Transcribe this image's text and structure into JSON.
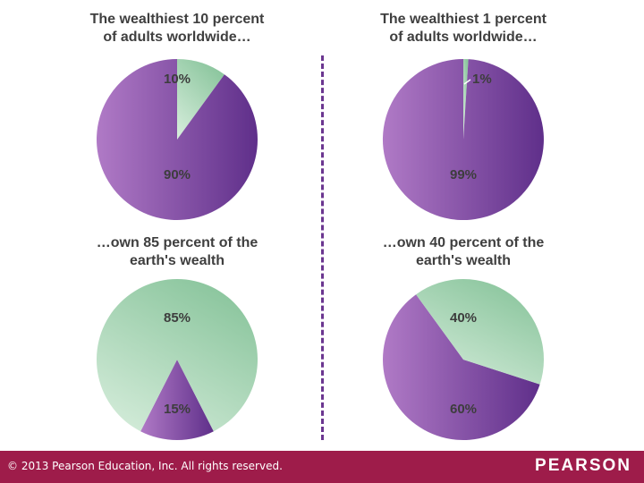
{
  "colors": {
    "purple_light": "#b07ac6",
    "purple_dark": "#5f2f8a",
    "green_light": "#d8eedd",
    "green_dark": "#8ec7a0",
    "divider": "#6b3690",
    "footer": "#9e1c4a"
  },
  "chart_data": [
    {
      "type": "pie",
      "title": "The wealthiest 10 percent\nof adults worldwide…",
      "slices": [
        {
          "label": "10%",
          "value": 10,
          "color": "green"
        },
        {
          "label": "90%",
          "value": 90,
          "color": "purple"
        }
      ]
    },
    {
      "type": "pie",
      "title": "The wealthiest 1 percent\nof adults worldwide…",
      "slices": [
        {
          "label": "1%",
          "value": 1,
          "color": "green"
        },
        {
          "label": "99%",
          "value": 99,
          "color": "purple"
        }
      ]
    },
    {
      "type": "pie",
      "title": "…own 85 percent of the\nearth's wealth",
      "slices": [
        {
          "label": "15%",
          "value": 15,
          "color": "purple"
        },
        {
          "label": "85%",
          "value": 85,
          "color": "green"
        }
      ]
    },
    {
      "type": "pie",
      "title": "…own 40 percent of the\nearth's wealth",
      "slices": [
        {
          "label": "60%",
          "value": 60,
          "color": "purple"
        },
        {
          "label": "40%",
          "value": 40,
          "color": "green"
        }
      ]
    }
  ],
  "footer": {
    "copyright": "© 2013  Pearson Education, Inc. All rights reserved.",
    "brand": "PEARSON"
  }
}
